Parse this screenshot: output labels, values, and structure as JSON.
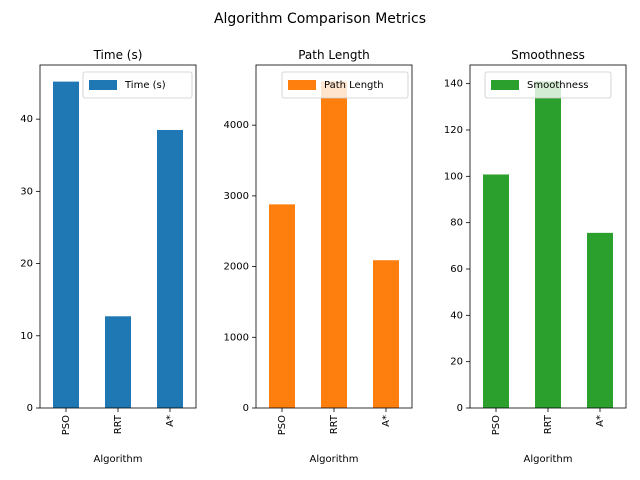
{
  "figure": {
    "suptitle": "Algorithm Comparison Metrics"
  },
  "chart_data": [
    {
      "type": "bar",
      "title": "Time (s)",
      "xlabel": "Algorithm",
      "ylabel": "",
      "categories": [
        "PSO",
        "RRT",
        "A*"
      ],
      "series": [
        {
          "name": "Time (s)",
          "values": [
            45.2,
            12.7,
            38.5
          ],
          "color": "#1f77b4"
        }
      ],
      "ylim": [
        0,
        47.5
      ],
      "yticks": [
        0,
        10,
        20,
        30,
        40
      ],
      "legend": "top-right",
      "grid": false
    },
    {
      "type": "bar",
      "title": "Path Length",
      "xlabel": "Algorithm",
      "ylabel": "",
      "categories": [
        "PSO",
        "RRT",
        "A*"
      ],
      "series": [
        {
          "name": "Path Length",
          "values": [
            2880,
            4620,
            2090
          ],
          "color": "#ff7f0e"
        }
      ],
      "ylim": [
        0,
        4851
      ],
      "yticks": [
        0,
        1000,
        2000,
        3000,
        4000
      ],
      "legend": "top-right",
      "grid": false
    },
    {
      "type": "bar",
      "title": "Smoothness",
      "xlabel": "Algorithm",
      "ylabel": "",
      "categories": [
        "PSO",
        "RRT",
        "A*"
      ],
      "series": [
        {
          "name": "Smoothness",
          "values": [
            100.8,
            141.0,
            75.6
          ],
          "color": "#2ca02c"
        }
      ],
      "ylim": [
        0,
        148.05
      ],
      "yticks": [
        0,
        20,
        40,
        60,
        80,
        100,
        120,
        140
      ],
      "legend": "top-center",
      "grid": false
    }
  ]
}
